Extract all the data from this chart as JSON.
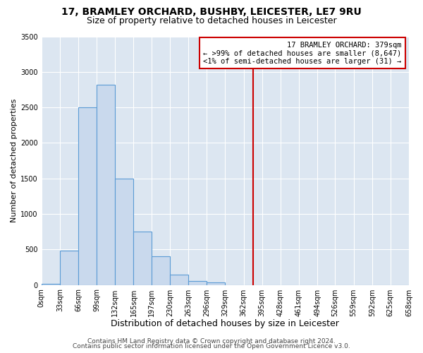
{
  "title1": "17, BRAMLEY ORCHARD, BUSHBY, LEICESTER, LE7 9RU",
  "title2": "Size of property relative to detached houses in Leicester",
  "xlabel": "Distribution of detached houses by size in Leicester",
  "ylabel": "Number of detached properties",
  "bin_edges": [
    0,
    33,
    66,
    99,
    132,
    165,
    197,
    230,
    263,
    296,
    329,
    362,
    395,
    428,
    461,
    494,
    526,
    559,
    592,
    625,
    658
  ],
  "bar_heights": [
    20,
    480,
    2500,
    2820,
    1500,
    750,
    400,
    150,
    60,
    40,
    0,
    0,
    0,
    0,
    0,
    0,
    0,
    0,
    0,
    0
  ],
  "bar_color": "#c9d9ed",
  "bar_edge_color": "#5b9bd5",
  "property_value": 379,
  "vline_color": "#cc0000",
  "annotation_title": "17 BRAMLEY ORCHARD: 379sqm",
  "annotation_line1": "← >99% of detached houses are smaller (8,647)",
  "annotation_line2": "<1% of semi-detached houses are larger (31) →",
  "annotation_box_color": "#ffffff",
  "annotation_border_color": "#cc0000",
  "ylim": [
    0,
    3500
  ],
  "yticks": [
    0,
    500,
    1000,
    1500,
    2000,
    2500,
    3000,
    3500
  ],
  "xtick_labels": [
    "0sqm",
    "33sqm",
    "66sqm",
    "99sqm",
    "132sqm",
    "165sqm",
    "197sqm",
    "230sqm",
    "263sqm",
    "296sqm",
    "329sqm",
    "362sqm",
    "395sqm",
    "428sqm",
    "461sqm",
    "494sqm",
    "526sqm",
    "559sqm",
    "592sqm",
    "625sqm",
    "658sqm"
  ],
  "footer1": "Contains HM Land Registry data © Crown copyright and database right 2024.",
  "footer2": "Contains public sector information licensed under the Open Government Licence v3.0.",
  "fig_bg_color": "#ffffff",
  "plot_bg_color": "#dce6f1",
  "title1_fontsize": 10,
  "title2_fontsize": 9,
  "xlabel_fontsize": 9,
  "ylabel_fontsize": 8,
  "tick_fontsize": 7,
  "footer_fontsize": 6.5,
  "ann_fontsize": 7.5
}
